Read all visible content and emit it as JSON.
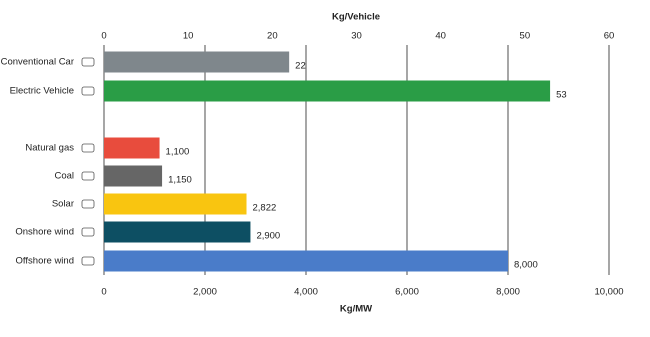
{
  "chart_data": [
    {
      "type": "bar",
      "orientation": "horizontal",
      "xlabel": "Kg/Vehicle",
      "axis_position": "top",
      "xlim": [
        0,
        60
      ],
      "xticks": [
        0,
        10,
        20,
        30,
        40,
        50,
        60
      ],
      "grid": false,
      "categories": [
        "Conventional Car",
        "Electric Vehicle"
      ],
      "values": [
        22,
        53
      ],
      "colors": [
        "#7f878c",
        "#2a9d46"
      ]
    },
    {
      "type": "bar",
      "orientation": "horizontal",
      "xlabel": "Kg/MW",
      "axis_position": "bottom",
      "xlim": [
        0,
        10000
      ],
      "xticks": [
        0,
        {
          "value": 2000,
          "label": "2,000"
        },
        {
          "value": 4000,
          "label": "4,000"
        },
        {
          "value": 6000,
          "label": "6,000"
        },
        {
          "value": 8000,
          "label": "8,000"
        },
        {
          "value": 10000,
          "label": "10,000"
        }
      ],
      "grid": true,
      "categories": [
        "Natural gas",
        "Coal",
        "Solar",
        "Onshore wind",
        "Offshore wind"
      ],
      "values": [
        1100,
        1150,
        2822,
        2900,
        8000
      ],
      "value_labels": [
        "1,100",
        "1,150",
        "2,822",
        "2,900",
        "8,000"
      ],
      "colors": [
        "#e84c3d",
        "#666666",
        "#f9c510",
        "#0d4f63",
        "#4a7cc9"
      ]
    }
  ]
}
